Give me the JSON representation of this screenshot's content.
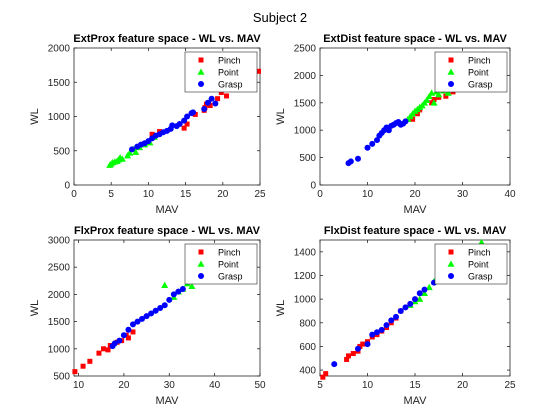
{
  "figure": {
    "title": "Subject 2"
  },
  "colors": {
    "Pinch": "#ff0000",
    "Point": "#00ff00",
    "Grasp": "#0000ff"
  },
  "chart_data": [
    {
      "type": "scatter",
      "title": "ExtProx feature space - WL vs. MAV",
      "xlabel": "MAV",
      "ylabel": "WL",
      "xlim": [
        0,
        25
      ],
      "ylim": [
        0,
        2000
      ],
      "xticks": [
        0,
        5,
        10,
        15,
        20,
        25
      ],
      "yticks": [
        0,
        500,
        1000,
        1500,
        2000
      ],
      "legend": "top-right",
      "series": [
        {
          "name": "Pinch",
          "marker": "square",
          "x": [
            10.5,
            11.5,
            14.8,
            15.2,
            16.3,
            17.5,
            17.6,
            17.8,
            18.1,
            18.3,
            19.3,
            19.8,
            20.5,
            24.8
          ],
          "y": [
            740,
            780,
            830,
            890,
            1030,
            1090,
            1130,
            1180,
            1200,
            1160,
            1260,
            1350,
            1300,
            1660
          ]
        },
        {
          "name": "Point",
          "marker": "triangle",
          "x": [
            4.8,
            5.0,
            5.2,
            5.5,
            5.8,
            6.0,
            6.2,
            6.5,
            7.2,
            7.5,
            8.0,
            8.3,
            8.8,
            9.5,
            10.2,
            10.8
          ],
          "y": [
            290,
            310,
            330,
            340,
            350,
            370,
            400,
            380,
            430,
            470,
            520,
            480,
            550,
            590,
            620,
            700
          ]
        },
        {
          "name": "Grasp",
          "marker": "circle",
          "x": [
            8.5,
            9.0,
            9.5,
            10.0,
            10.5,
            11.0,
            11.5,
            12.0,
            12.5,
            13.0,
            13.2,
            13.8,
            14.2,
            14.8,
            15.2,
            15.8,
            16.0,
            17.5,
            18.0,
            18.5,
            19.0,
            7.8
          ],
          "y": [
            560,
            590,
            610,
            640,
            680,
            720,
            740,
            770,
            790,
            820,
            870,
            860,
            890,
            940,
            1000,
            1050,
            1060,
            1110,
            1200,
            1260,
            1190,
            520
          ]
        }
      ]
    },
    {
      "type": "scatter",
      "title": "ExtDist feature space - WL vs. MAV",
      "xlabel": "MAV",
      "ylabel": "WL",
      "xlim": [
        0,
        40
      ],
      "ylim": [
        0,
        2500
      ],
      "xticks": [
        0,
        10,
        20,
        30,
        40
      ],
      "yticks": [
        0,
        500,
        1000,
        1500,
        2000,
        2500
      ],
      "legend": "top-right",
      "series": [
        {
          "name": "Pinch",
          "marker": "square",
          "x": [
            19.5,
            20.5,
            21.0,
            23.5,
            24.0,
            25.0,
            26.5,
            28.0,
            30.0
          ],
          "y": [
            1200,
            1300,
            1370,
            1500,
            1560,
            1600,
            1620,
            1700,
            1750
          ]
        },
        {
          "name": "Point",
          "marker": "triangle",
          "x": [
            18.5,
            19.0,
            19.5,
            20.0,
            20.5,
            21.0,
            21.5,
            22.0,
            22.5,
            23.0,
            23.5,
            24.0,
            24.5,
            25.0,
            26.0,
            27.0,
            28.0,
            29.0,
            30.0,
            31.0,
            34.5
          ],
          "y": [
            1200,
            1250,
            1300,
            1350,
            1380,
            1420,
            1450,
            1500,
            1550,
            1620,
            1680,
            1500,
            1700,
            1650,
            1720,
            1680,
            1760,
            1750,
            1820,
            1800,
            2380
          ]
        },
        {
          "name": "Grasp",
          "marker": "circle",
          "x": [
            6.0,
            6.5,
            8.0,
            10.0,
            11.0,
            12.0,
            12.5,
            13.0,
            13.5,
            14.0,
            14.5,
            15.0,
            15.5,
            16.0,
            16.5,
            17.0,
            17.5,
            18.0
          ],
          "y": [
            400,
            430,
            480,
            680,
            750,
            820,
            900,
            950,
            1000,
            1050,
            1000,
            1080,
            1100,
            1130,
            1150,
            1100,
            1120,
            1160
          ]
        }
      ]
    },
    {
      "type": "scatter",
      "title": "FlxProx feature space - WL vs. MAV",
      "xlabel": "MAV",
      "ylabel": "WL",
      "xlim": [
        9,
        50
      ],
      "ylim": [
        500,
        3000
      ],
      "xticks": [
        10,
        20,
        30,
        40,
        50
      ],
      "yticks": [
        500,
        1000,
        1500,
        2000,
        2500,
        3000
      ],
      "legend": "top-right",
      "series": [
        {
          "name": "Pinch",
          "marker": "square",
          "x": [
            9.2,
            11.0,
            12.5,
            14.5,
            15.5,
            16.5,
            17.0,
            18.5,
            19.5,
            20.5,
            21.0,
            22.0
          ],
          "y": [
            580,
            680,
            770,
            920,
            1000,
            980,
            1060,
            1120,
            1150,
            1250,
            1200,
            1310
          ]
        },
        {
          "name": "Point",
          "marker": "triangle",
          "x": [
            29.0,
            31.0,
            32.0,
            33.0,
            34.0,
            35.0,
            36.0,
            37.0,
            38.0,
            39.0,
            40.0,
            41.0
          ],
          "y": [
            2170,
            1950,
            2050,
            2100,
            2200,
            2150,
            2250,
            2300,
            2350,
            2500,
            2550,
            2600
          ]
        },
        {
          "name": "Grasp",
          "marker": "circle",
          "x": [
            17.5,
            18.0,
            19.0,
            20.0,
            21.0,
            22.0,
            23.0,
            24.0,
            25.0,
            26.0,
            27.0,
            28.0,
            29.0,
            30.0,
            31.0,
            32.0,
            33.0
          ],
          "y": [
            1050,
            1100,
            1150,
            1250,
            1350,
            1450,
            1500,
            1550,
            1600,
            1650,
            1700,
            1750,
            1800,
            1900,
            2000,
            2050,
            2100
          ]
        }
      ]
    },
    {
      "type": "scatter",
      "title": "FlxDist feature space - WL vs. MAV",
      "xlabel": "MAV",
      "ylabel": "WL",
      "xlim": [
        5,
        25
      ],
      "ylim": [
        350,
        1500
      ],
      "xticks": [
        5,
        10,
        15,
        20,
        25
      ],
      "yticks": [
        400,
        600,
        800,
        1000,
        1200,
        1400
      ],
      "legend": "top-right",
      "series": [
        {
          "name": "Pinch",
          "marker": "square",
          "x": [
            5.3,
            5.6,
            7.8,
            8.0,
            8.5,
            9.0,
            9.2,
            9.5,
            10.0,
            10.5,
            11.0,
            11.5,
            12.0,
            12.5,
            13.0,
            13.5
          ],
          "y": [
            340,
            370,
            490,
            520,
            540,
            560,
            600,
            620,
            640,
            680,
            700,
            730,
            760,
            800,
            840,
            900
          ]
        },
        {
          "name": "Point",
          "marker": "triangle",
          "x": [
            14.5,
            15.0,
            15.5,
            16.0,
            16.5,
            17.0,
            18.0,
            19.0,
            22.0
          ],
          "y": [
            950,
            980,
            1000,
            1050,
            1100,
            1150,
            1200,
            1230,
            1480
          ]
        },
        {
          "name": "Grasp",
          "marker": "circle",
          "x": [
            6.5,
            9.0,
            10.0,
            10.5,
            11.0,
            11.5,
            12.0,
            12.5,
            13.0,
            13.5,
            14.0,
            14.5,
            15.0,
            15.5,
            16.0,
            17.0,
            18.0
          ],
          "y": [
            450,
            580,
            620,
            700,
            720,
            740,
            780,
            820,
            850,
            900,
            930,
            960,
            1000,
            1050,
            1080,
            1140,
            1200
          ]
        }
      ]
    }
  ]
}
